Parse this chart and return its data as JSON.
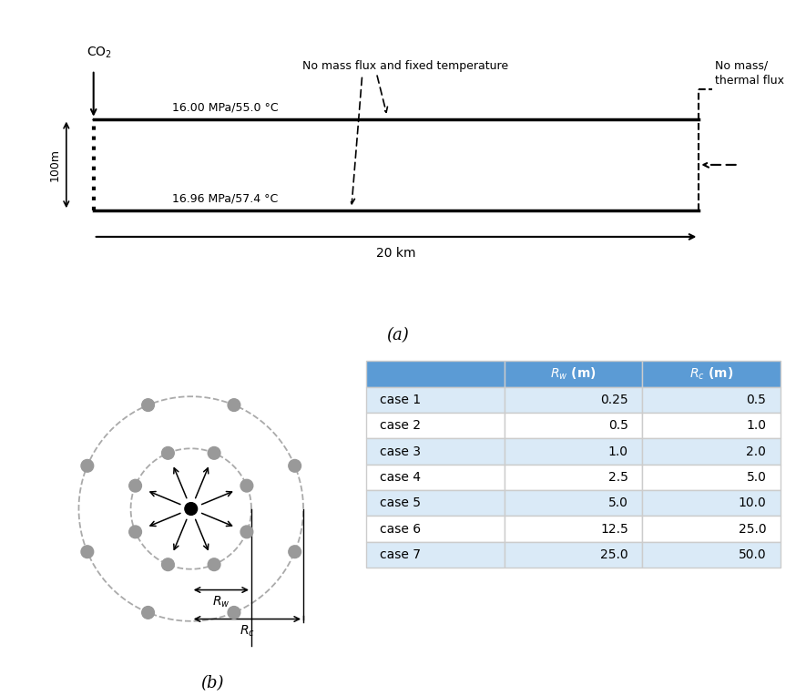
{
  "title_a": "(a)",
  "title_b": "(b)",
  "co2_label": "CO$_2$",
  "top_label": "16.00 MPa/55.0 °C",
  "bottom_label": "16.96 MPa/57.4 °C",
  "dist_label": "20 km",
  "depth_label": "100m",
  "no_mass_flux_label": "No mass flux and fixed temperature",
  "no_mass_thermal_label": "No mass/\nthermal flux",
  "cases": [
    "case 1",
    "case 2",
    "case 3",
    "case 4",
    "case 5",
    "case 6",
    "case 7"
  ],
  "rw_values": [
    "0.25",
    "0.5",
    "1.0",
    "2.5",
    "5.0",
    "12.5",
    "25.0"
  ],
  "rc_values": [
    "0.5",
    "1.0",
    "2.0",
    "5.0",
    "10.0",
    "25.0",
    "50.0"
  ],
  "header_color": "#5B9BD5",
  "row_color_odd": "#DAEAF7",
  "row_color_even": "#FFFFFF",
  "bg_color": "#FFFFFF",
  "well_gray": "#999999"
}
